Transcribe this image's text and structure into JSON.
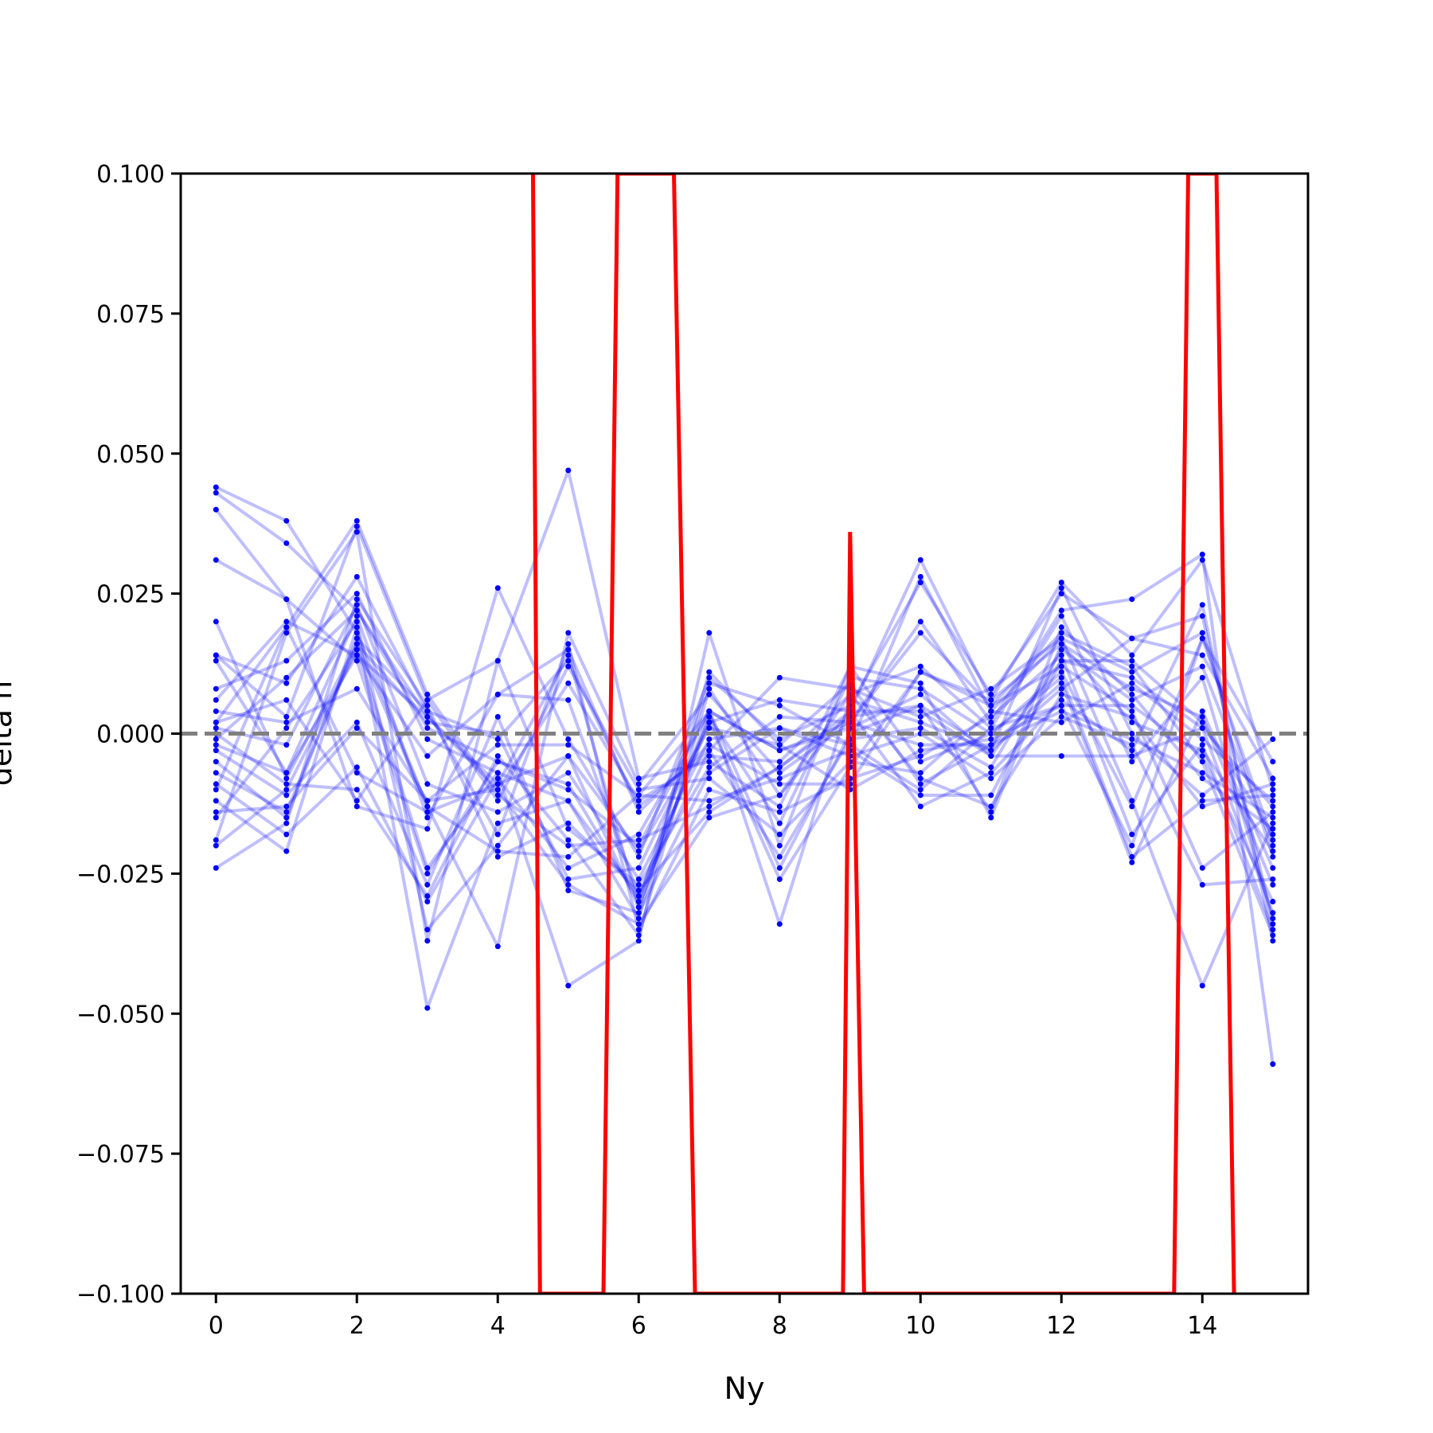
{
  "chart_data": {
    "type": "line",
    "xlabel": "Ny",
    "ylabel": "delta h",
    "xlim": [
      -0.5,
      15.5
    ],
    "ylim": [
      -0.1,
      0.1
    ],
    "xticks": [
      0,
      2,
      4,
      6,
      8,
      10,
      12,
      14
    ],
    "xtick_labels": [
      "0",
      "2",
      "4",
      "6",
      "8",
      "10",
      "12",
      "14"
    ],
    "yticks": [
      -0.1,
      -0.075,
      -0.05,
      -0.025,
      0.0,
      0.025,
      0.05,
      0.075,
      0.1
    ],
    "ytick_labels": [
      "−0.100",
      "−0.075",
      "−0.050",
      "−0.025",
      "0.000",
      "0.025",
      "0.050",
      "0.075",
      "0.100"
    ],
    "x": [
      0,
      1,
      2,
      3,
      4,
      5,
      6,
      7,
      8,
      9,
      10,
      11,
      12,
      13,
      14,
      15
    ],
    "reference_line": {
      "y": 0.0,
      "style": "dashed",
      "color": "#808080"
    },
    "colors": {
      "samples": "#0000ff",
      "highlight": "#ff0000"
    },
    "series": [
      {
        "values": [
          0.044,
          0.038,
          0.018,
          -0.013,
          -0.021,
          -0.022,
          -0.011,
          0.004,
          -0.003,
          0.001,
          0.007,
          -0.004,
          0.013,
          0.01,
          0.001,
          -0.013
        ]
      },
      {
        "values": [
          0.043,
          0.034,
          0.022,
          0.003,
          -0.01,
          -0.027,
          -0.034,
          -0.015,
          -0.011,
          0.004,
          0.031,
          0.006,
          0.027,
          0.014,
          0.031,
          -0.01
        ]
      },
      {
        "values": [
          0.04,
          0.024,
          0.013,
          -0.025,
          -0.005,
          -0.009,
          -0.03,
          0.009,
          0.005,
          -0.002,
          0.028,
          0.004,
          0.017,
          0.011,
          0.018,
          -0.022
        ]
      },
      {
        "values": [
          0.031,
          0.024,
          -0.013,
          -0.017,
          0.026,
          -0.001,
          -0.022,
          0.01,
          -0.001,
          0.005,
          0.027,
          0.007,
          0.025,
          0.017,
          0.021,
          -0.034
        ]
      },
      {
        "values": [
          0.02,
          -0.008,
          0.016,
          -0.013,
          -0.038,
          0.018,
          -0.009,
          0.007,
          -0.007,
          0.002,
          0.02,
          0.002,
          0.022,
          0.024,
          0.032,
          -0.059
        ]
      },
      {
        "values": [
          0.014,
          0.003,
          0.037,
          0.006,
          0.013,
          0.047,
          -0.008,
          -0.005,
          -0.013,
          0.012,
          0.009,
          -0.015,
          0.016,
          0.008,
          0.003,
          -0.027
        ]
      },
      {
        "values": [
          0.014,
          0.009,
          0.028,
          0.004,
          -0.001,
          0.013,
          -0.013,
          -0.003,
          0.01,
          0.008,
          0.003,
          0.008,
          0.017,
          -0.012,
          -0.045,
          -0.016
        ]
      },
      {
        "values": [
          0.008,
          0.013,
          0.025,
          -0.001,
          -0.007,
          -0.045,
          -0.037,
          0.018,
          -0.02,
          0.012,
          -0.005,
          0.0,
          0.01,
          -0.022,
          -0.012,
          -0.011
        ]
      },
      {
        "values": [
          0.006,
          0.02,
          0.014,
          0.003,
          -0.009,
          0.014,
          -0.031,
          0.004,
          -0.034,
          0.006,
          0.002,
          -0.003,
          0.008,
          0.017,
          0.014,
          -0.008
        ]
      },
      {
        "values": [
          0.002,
          0.019,
          0.038,
          0.007,
          -0.011,
          -0.02,
          -0.019,
          -0.013,
          -0.006,
          0.004,
          -0.013,
          -0.007,
          0.006,
          -0.003,
          0.023,
          -0.037
        ]
      },
      {
        "values": [
          0.001,
          -0.002,
          0.023,
          -0.009,
          -0.014,
          -0.007,
          -0.026,
          -0.001,
          0.001,
          -0.002,
          -0.01,
          0.001,
          0.005,
          0.005,
          -0.004,
          -0.03
        ]
      },
      {
        "values": [
          -0.002,
          -0.007,
          0.021,
          -0.015,
          0.007,
          0.006,
          -0.029,
          0.002,
          -0.026,
          -0.006,
          0.011,
          0.005,
          0.012,
          0.004,
          -0.024,
          -0.014
        ]
      },
      {
        "values": [
          -0.003,
          -0.011,
          0.002,
          -0.027,
          0.003,
          -0.028,
          -0.032,
          -0.007,
          0.001,
          -0.004,
          0.0,
          -0.008,
          0.003,
          -0.002,
          -0.027,
          -0.026
        ]
      },
      {
        "values": [
          -0.005,
          -0.015,
          0.017,
          0.004,
          -0.018,
          0.016,
          -0.035,
          -0.01,
          -0.014,
          -0.008,
          -0.004,
          0.003,
          0.014,
          -0.018,
          -0.002,
          -0.035
        ]
      },
      {
        "values": [
          -0.009,
          -0.018,
          -0.006,
          -0.03,
          -0.008,
          -0.024,
          -0.018,
          0.004,
          -0.024,
          0.0,
          0.005,
          -0.014,
          0.019,
          0.007,
          -0.008,
          -0.017
        ]
      },
      {
        "values": [
          -0.012,
          -0.021,
          0.019,
          -0.049,
          -0.016,
          -0.012,
          -0.029,
          -0.003,
          -0.022,
          -0.001,
          0.001,
          -0.006,
          0.015,
          0.006,
          0.012,
          -0.02
        ]
      },
      {
        "values": [
          -0.014,
          -0.013,
          0.001,
          -0.012,
          -0.002,
          -0.002,
          -0.011,
          -0.012,
          -0.008,
          -0.003,
          -0.011,
          -0.011,
          0.013,
          0.013,
          0.002,
          -0.018
        ]
      },
      {
        "values": [
          -0.015,
          0.001,
          0.02,
          -0.035,
          -0.02,
          -0.004,
          -0.021,
          0.001,
          -0.002,
          0.009,
          -0.009,
          -0.002,
          0.009,
          -0.023,
          0.004,
          -0.024
        ]
      },
      {
        "values": [
          -0.019,
          0.018,
          0.036,
          -0.037,
          0.013,
          -0.017,
          -0.027,
          -0.006,
          0.003,
          0.002,
          0.018,
          0.005,
          0.018,
          0.012,
          -0.005,
          -0.036
        ]
      },
      {
        "values": [
          -0.02,
          -0.01,
          0.015,
          -0.024,
          -0.007,
          -0.012,
          -0.033,
          0.011,
          -0.002,
          -0.01,
          -0.003,
          -0.001,
          0.005,
          -0.02,
          0.017,
          -0.005
        ]
      },
      {
        "values": [
          -0.024,
          -0.016,
          0.024,
          0.005,
          -0.022,
          -0.016,
          -0.028,
          -0.014,
          -0.006,
          0.003,
          0.005,
          -0.003,
          0.026,
          0.0,
          -0.011,
          -0.001
        ]
      },
      {
        "values": [
          0.0,
          -0.009,
          -0.01,
          -0.029,
          -0.004,
          -0.019,
          -0.036,
          0.008,
          -0.011,
          0.007,
          0.012,
          0.001,
          0.021,
          -0.005,
          0.01,
          -0.033
        ]
      },
      {
        "values": [
          0.002,
          0.006,
          -0.012,
          0.006,
          -0.012,
          0.012,
          -0.01,
          -0.008,
          -0.018,
          -0.005,
          -0.007,
          0.004,
          0.002,
          0.009,
          -0.001,
          -0.012
        ]
      },
      {
        "values": [
          -0.007,
          -0.014,
          0.016,
          0.002,
          0.0,
          -0.026,
          -0.024,
          0.002,
          0.006,
          0.004,
          0.004,
          -0.004,
          -0.004,
          -0.004,
          0.001,
          -0.032
        ]
      },
      {
        "values": [
          0.004,
          0.002,
          0.008,
          -0.012,
          -0.01,
          0.009,
          -0.012,
          -0.004,
          -0.005,
          0.007,
          -0.008,
          -0.013,
          0.007,
          0.003,
          -0.013,
          -0.009
        ]
      },
      {
        "values": [
          -0.01,
          0.019,
          -0.007,
          -0.014,
          -0.009,
          -0.004,
          -0.031,
          0.003,
          -0.016,
          0.01,
          0.008,
          0.0,
          0.011,
          -0.013,
          0.017,
          -0.019
        ]
      },
      {
        "values": [
          0.013,
          -0.007,
          0.014,
          -0.004,
          0.007,
          0.015,
          -0.014,
          -0.002,
          -0.009,
          -0.009,
          0.011,
          0.006,
          0.016,
          0.002,
          -0.003,
          -0.021
        ]
      },
      {
        "values": [
          -0.001,
          0.01,
          0.022,
          0.001,
          -0.005,
          -0.01,
          -0.02,
          0.004,
          -0.003,
          0.002,
          -0.002,
          -0.002,
          0.004,
          -0.001,
          -0.007,
          -0.015
        ]
      }
    ],
    "highlight_series": {
      "x": [
        4.5,
        4.6,
        5.5,
        5.7,
        6.5,
        6.8,
        8.9,
        9.0,
        9.2,
        13.6,
        13.8,
        14.2,
        14.45
      ],
      "values": [
        0.1,
        -0.1,
        -0.1,
        0.1,
        0.1,
        -0.1,
        -0.1,
        0.036,
        -0.1,
        -0.1,
        0.1,
        0.1,
        -0.1
      ]
    }
  }
}
